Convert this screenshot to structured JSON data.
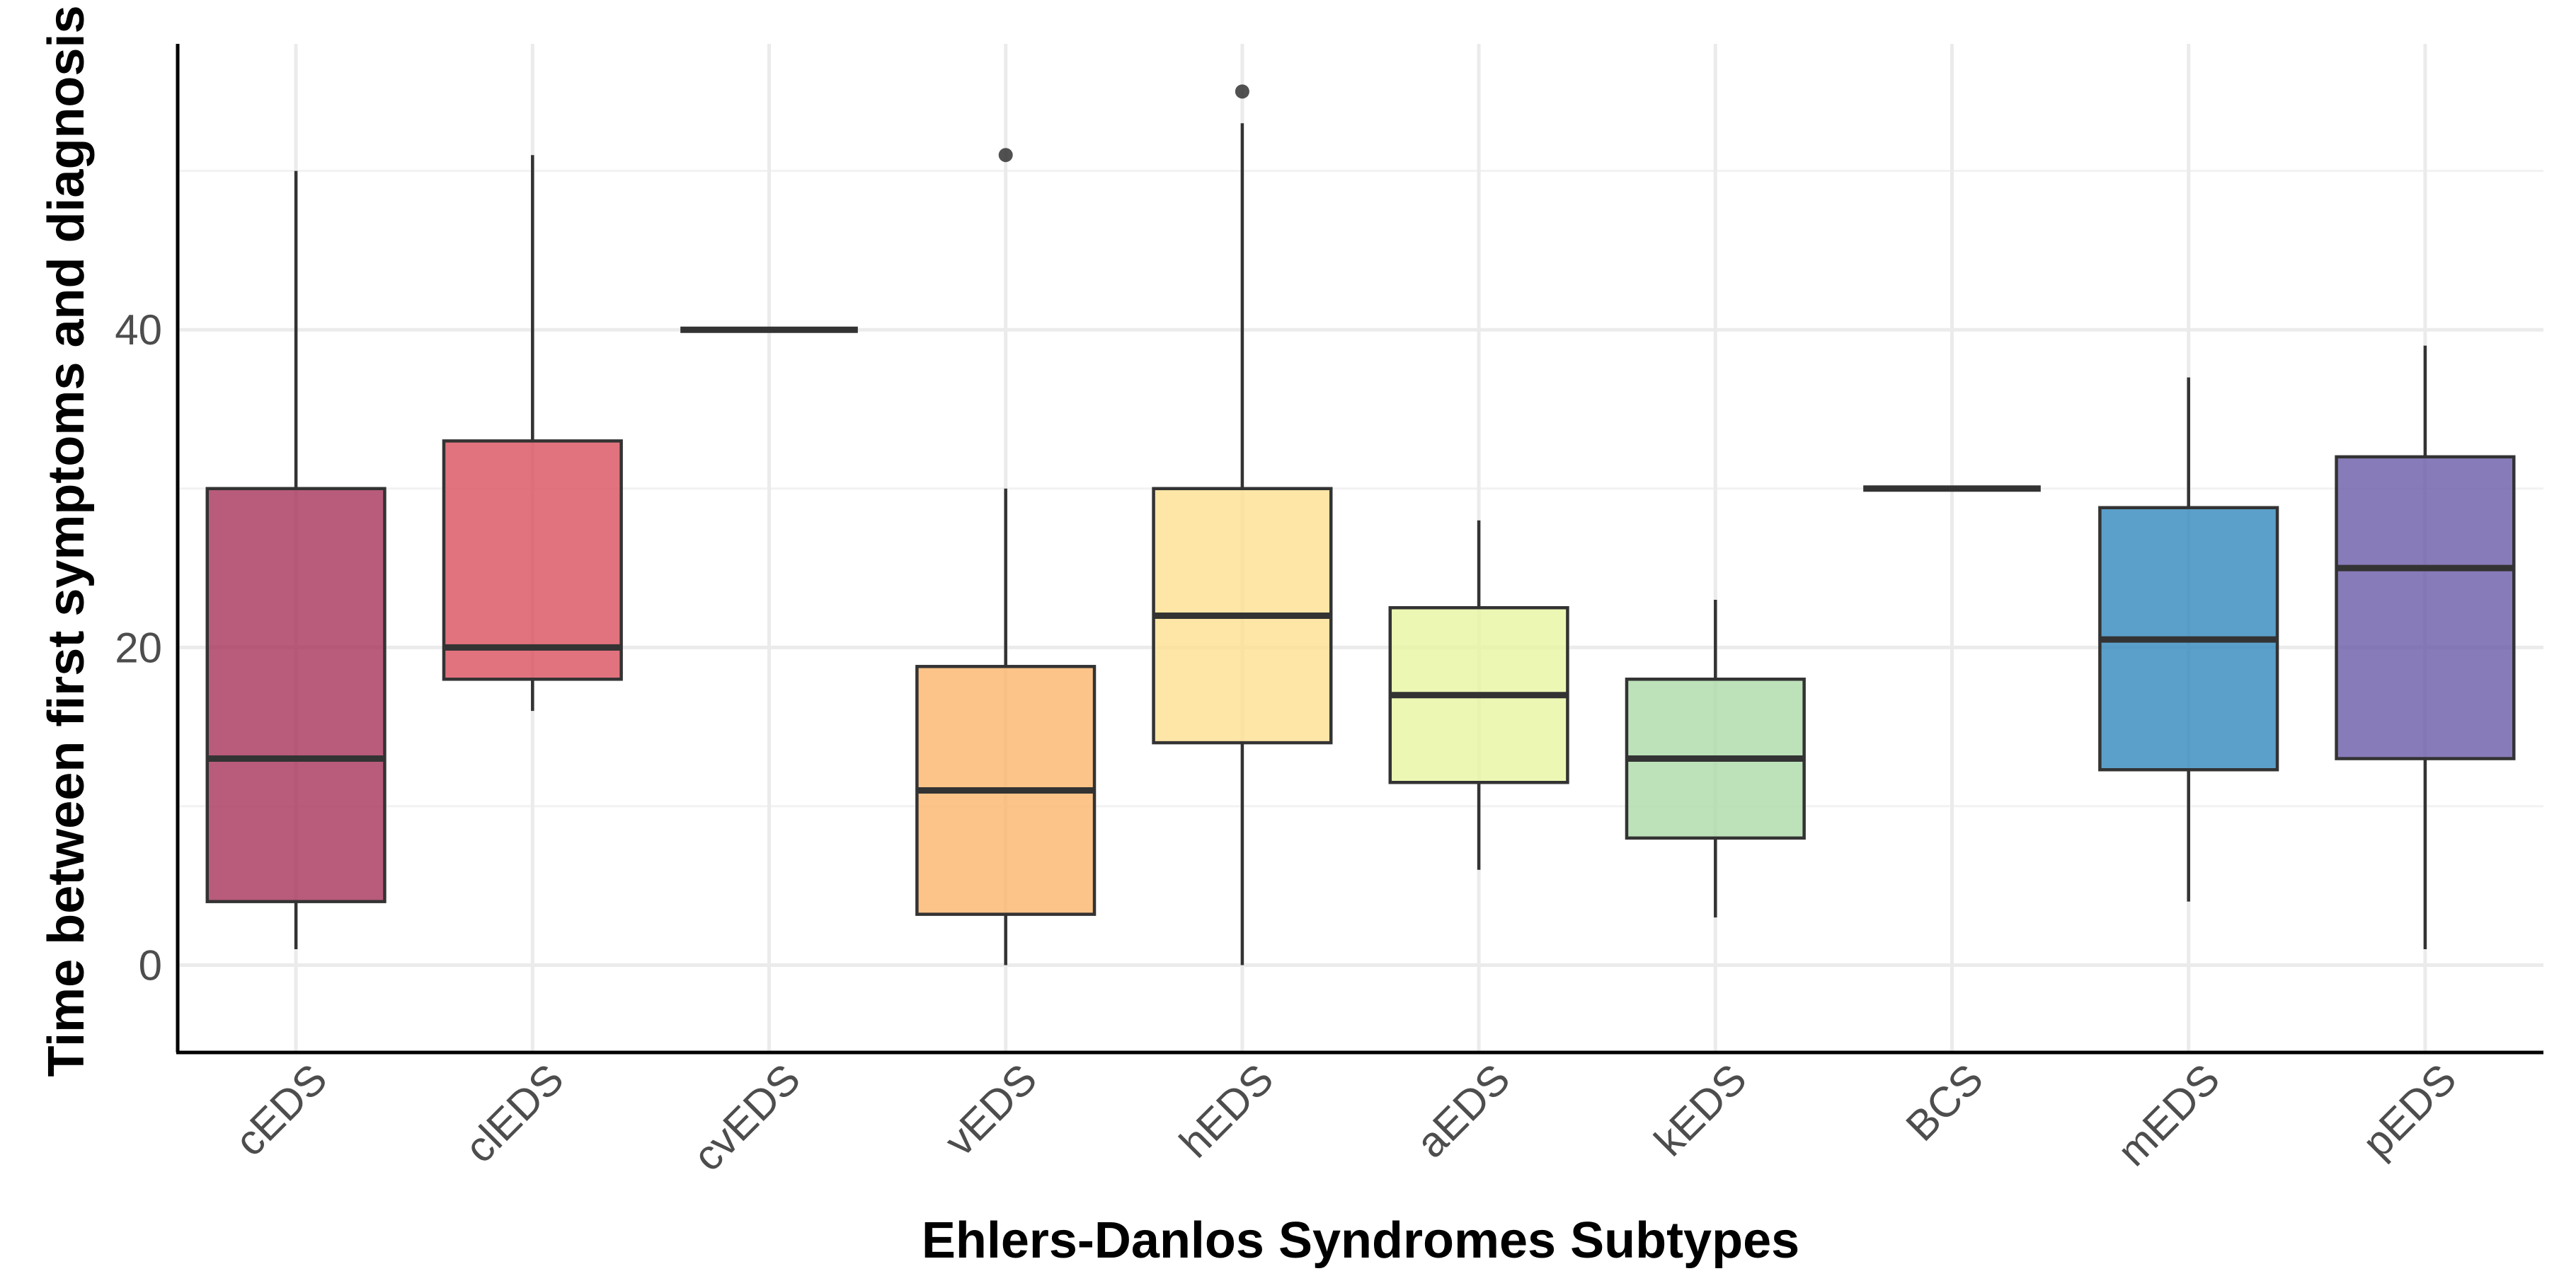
{
  "chart_data": {
    "type": "boxplot",
    "xlabel": "Ehlers-Danlos Syndromes Subtypes",
    "ylabel": "Time between first symptoms and diagnosis",
    "ylim": [
      -5.5,
      58
    ],
    "yticks": [
      0,
      20,
      40
    ],
    "grid": true,
    "legend": "none",
    "categories": [
      "cEDS",
      "clEDS",
      "cvEDS",
      "vEDS",
      "hEDS",
      "aEDS",
      "kEDS",
      "BCS",
      "mEDS",
      "pEDS"
    ],
    "boxes": [
      {
        "category": "cEDS",
        "min": 1,
        "q1": 4,
        "median": 13,
        "q3": 30,
        "max": 50,
        "outliers": [],
        "color": "#A8325A"
      },
      {
        "category": "clEDS",
        "min": 16,
        "q1": 18,
        "median": 20,
        "q3": 33,
        "max": 51,
        "outliers": [],
        "color": "#D9505E"
      },
      {
        "category": "cvEDS",
        "min": 40,
        "q1": 40,
        "median": 40,
        "q3": 40,
        "max": 40,
        "outliers": [],
        "color": "#EE7558"
      },
      {
        "category": "vEDS",
        "min": 0,
        "q1": 3.2,
        "median": 11,
        "q3": 18.8,
        "max": 30,
        "outliers": [
          51
        ],
        "color": "#FDB56C"
      },
      {
        "category": "hEDS",
        "min": 0,
        "q1": 14,
        "median": 22,
        "q3": 30,
        "max": 53,
        "outliers": [
          55
        ],
        "color": "#FEE090"
      },
      {
        "category": "aEDS",
        "min": 6,
        "q1": 11.5,
        "median": 17,
        "q3": 22.5,
        "max": 28,
        "outliers": [],
        "color": "#E8F5A1"
      },
      {
        "category": "kEDS",
        "min": 3,
        "q1": 8,
        "median": 13,
        "q3": 18,
        "max": 23,
        "outliers": [],
        "color": "#ADDAA8"
      },
      {
        "category": "BCS",
        "min": 30,
        "q1": 30,
        "median": 30,
        "q3": 30,
        "max": 30,
        "outliers": [],
        "color": "#66C2A5"
      },
      {
        "category": "mEDS",
        "min": 4,
        "q1": 12.3,
        "median": 20.5,
        "q3": 28.8,
        "max": 37,
        "outliers": [],
        "color": "#3288BD"
      },
      {
        "category": "pEDS",
        "min": 1,
        "q1": 13,
        "median": 25,
        "q3": 32,
        "max": 39,
        "outliers": [],
        "color": "#6A5AA8"
      }
    ]
  }
}
